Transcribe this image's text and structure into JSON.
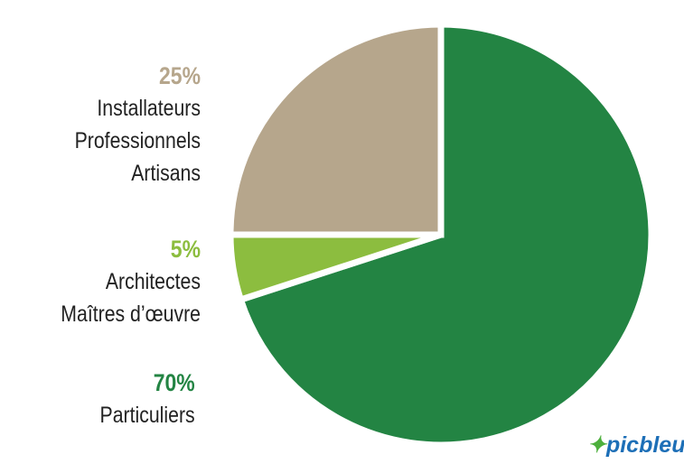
{
  "chart_data": {
    "type": "pie",
    "slices": [
      {
        "label_lines": [
          "Particuliers"
        ],
        "percent_label": "70%",
        "value": 70,
        "color": "#238443"
      },
      {
        "label_lines": [
          "Architectes",
          "Maîtres d’œuvre"
        ],
        "percent_label": "5%",
        "value": 5,
        "color": "#8cbd3f"
      },
      {
        "label_lines": [
          "Installateurs",
          "Professionnels",
          "Artisans"
        ],
        "percent_label": "25%",
        "value": 25,
        "color": "#b6a68c"
      }
    ]
  },
  "logo": {
    "text": "picbleu"
  }
}
